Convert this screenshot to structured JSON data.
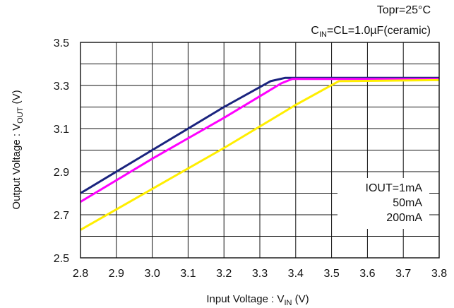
{
  "conditions": {
    "line1": "Topr=25°C",
    "line2_prefix": "C",
    "line2_sub": "IN",
    "line2_rest": "=CL=1.0µF(ceramic)"
  },
  "chart_data": {
    "type": "line",
    "title": "",
    "xlabel_prefix": "Input Voltage : V",
    "xlabel_sub": "IN",
    "xlabel_suffix": " (V)",
    "ylabel_prefix": "Output Voltage : V",
    "ylabel_sub": "OUT",
    "ylabel_suffix": " (V)",
    "xlim": [
      2.8,
      3.8
    ],
    "ylim": [
      2.5,
      3.5
    ],
    "xticks": [
      "2.8",
      "2.9",
      "3.0",
      "3.1",
      "3.2",
      "3.3",
      "3.4",
      "3.5",
      "3.6",
      "3.7",
      "3.8"
    ],
    "yticks": [
      "2.5",
      "2.7",
      "2.9",
      "3.1",
      "3.3",
      "3.5"
    ],
    "grid": true,
    "legend_placement": "lower-right",
    "series": [
      {
        "name": "IOUT=1mA",
        "color": "#1a237e",
        "points": [
          [
            2.8,
            2.8
          ],
          [
            3.0,
            3.0
          ],
          [
            3.2,
            3.2
          ],
          [
            3.33,
            3.32
          ],
          [
            3.37,
            3.335
          ],
          [
            3.8,
            3.335
          ]
        ]
      },
      {
        "name": "50mA",
        "color": "#ff00ff",
        "points": [
          [
            2.8,
            2.76
          ],
          [
            3.0,
            2.96
          ],
          [
            3.2,
            3.15
          ],
          [
            3.36,
            3.31
          ],
          [
            3.39,
            3.33
          ],
          [
            3.8,
            3.33
          ]
        ]
      },
      {
        "name": "200mA",
        "color": "#ffee00",
        "points": [
          [
            2.8,
            2.63
          ],
          [
            3.0,
            2.82
          ],
          [
            3.2,
            3.01
          ],
          [
            3.4,
            3.21
          ],
          [
            3.52,
            3.32
          ],
          [
            3.8,
            3.325
          ]
        ]
      }
    ]
  }
}
